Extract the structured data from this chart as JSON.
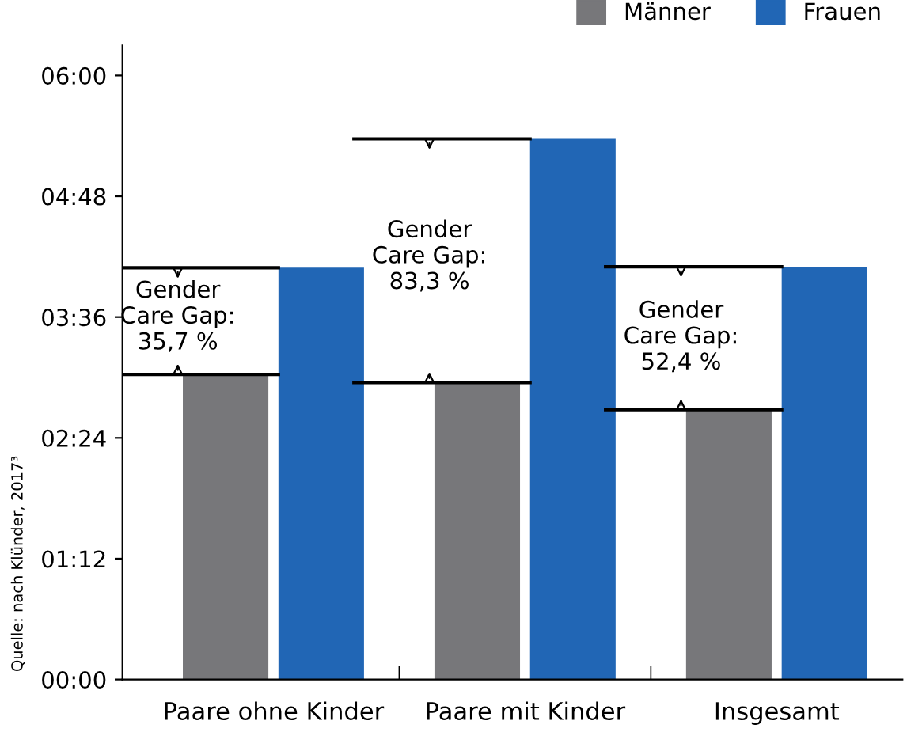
{
  "chart_data": {
    "type": "bar",
    "categories": [
      "Paare ohne Kinder",
      "Paare mit Kinder",
      "Insgesamt"
    ],
    "series": [
      {
        "name": "Männer",
        "color": "#77777a",
        "values": [
          3.03,
          2.95,
          2.68
        ]
      },
      {
        "name": "Frauen",
        "color": "#2166b5",
        "values": [
          4.09,
          5.37,
          4.1
        ]
      }
    ],
    "ylim": [
      0,
      6.3
    ],
    "yticks": [
      {
        "value": 0,
        "label": "00:00"
      },
      {
        "value": 1.2,
        "label": "01:12"
      },
      {
        "value": 2.4,
        "label": "02:24"
      },
      {
        "value": 3.6,
        "label": "03:36"
      },
      {
        "value": 4.8,
        "label": "04:48"
      },
      {
        "value": 6,
        "label": "06:00"
      }
    ],
    "annotations": [
      {
        "text": "Gender\nCare Gap:\n35,7 %",
        "x": "Paare ohne Kinder",
        "y": 3.6
      },
      {
        "text": "Gender\nCare Gap:\n83,3 %",
        "x": "Paare mit Kinder",
        "y": 4.2
      },
      {
        "text": "Gender\nCare Gap:\n52,4 %",
        "x": "Insgesamt",
        "y": 3.4
      },
      "Quelle: nach Klünder, 2017³"
    ],
    "legend": "top right",
    "grid": false
  }
}
